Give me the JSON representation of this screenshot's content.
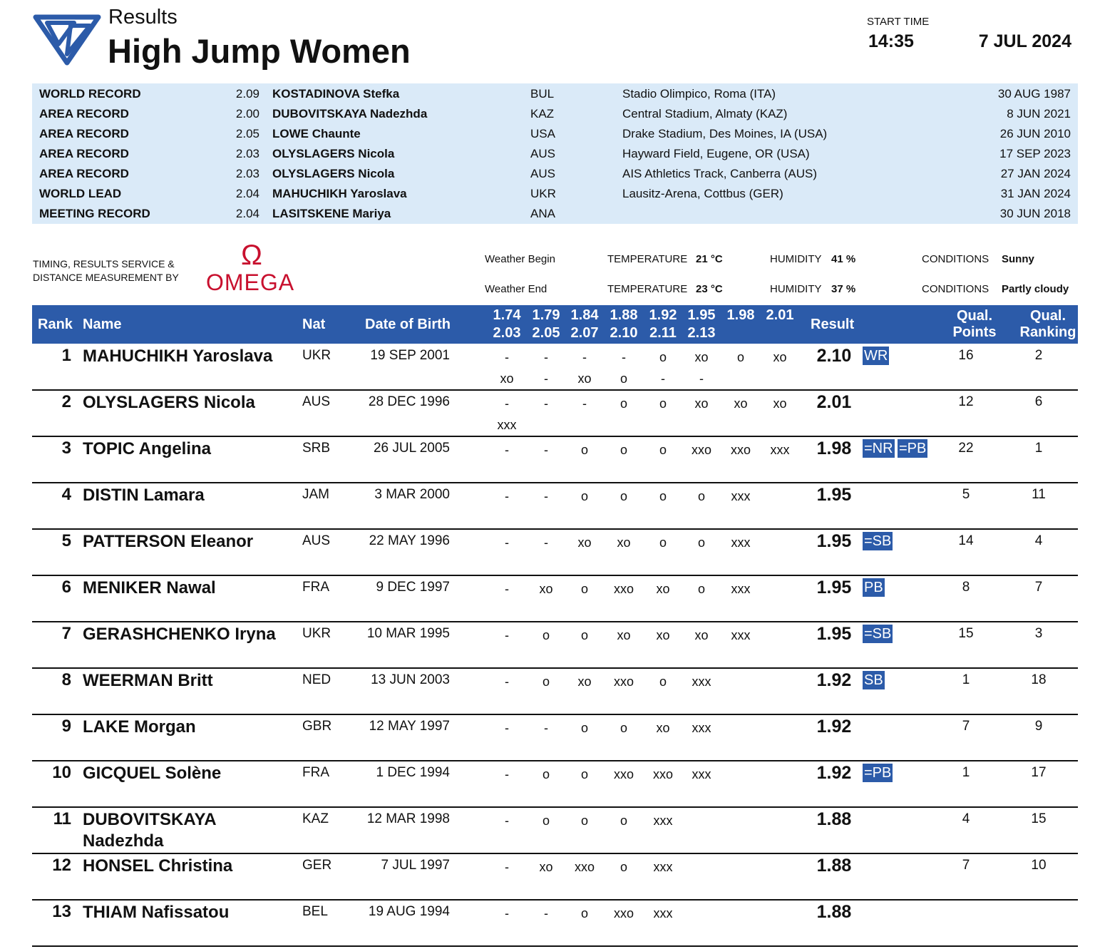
{
  "header": {
    "label": "Results",
    "title": "High Jump Women",
    "start_time_label": "START TIME",
    "start_time": "14:35",
    "date": "7 JUL 2024"
  },
  "records": [
    {
      "type": "WORLD RECORD",
      "mark": "2.09",
      "athlete": "KOSTADINOVA Stefka",
      "nat": "BUL",
      "venue": "Stadio Olimpico, Roma (ITA)",
      "date": "30 AUG 1987"
    },
    {
      "type": "AREA RECORD",
      "mark": "2.00",
      "athlete": "DUBOVITSKAYA Nadezhda",
      "nat": "KAZ",
      "venue": "Central Stadium, Almaty (KAZ)",
      "date": "8 JUN 2021"
    },
    {
      "type": "AREA RECORD",
      "mark": "2.05",
      "athlete": "LOWE Chaunte",
      "nat": "USA",
      "venue": "Drake Stadium, Des Moines, IA (USA)",
      "date": "26 JUN 2010"
    },
    {
      "type": "AREA RECORD",
      "mark": "2.03",
      "athlete": "OLYSLAGERS Nicola",
      "nat": "AUS",
      "venue": "Hayward Field, Eugene, OR (USA)",
      "date": "17 SEP 2023"
    },
    {
      "type": "AREA RECORD",
      "mark": "2.03",
      "athlete": "OLYSLAGERS Nicola",
      "nat": "AUS",
      "venue": "AIS Athletics Track, Canberra (AUS)",
      "date": "27 JAN 2024"
    },
    {
      "type": "WORLD LEAD",
      "mark": "2.04",
      "athlete": "MAHUCHIKH Yaroslava",
      "nat": "UKR",
      "venue": "Lausitz-Arena, Cottbus (GER)",
      "date": "31 JAN 2024"
    },
    {
      "type": "MEETING RECORD",
      "mark": "2.04",
      "athlete": "LASITSKENE Mariya",
      "nat": "ANA",
      "date": "30 JUN 2018"
    }
  ],
  "timing": {
    "text": "TIMING, RESULTS SERVICE & DISTANCE MEASUREMENT BY",
    "logo_symbol": "Ω",
    "logo": "OMEGA"
  },
  "weather": [
    {
      "label": "Weather Begin",
      "temp_label": "TEMPERATURE",
      "temp": "21 °C",
      "hum_label": "HUMIDITY",
      "hum": "41 %",
      "cond_label": "CONDITIONS",
      "cond": "Sunny"
    },
    {
      "label": "Weather End",
      "temp_label": "TEMPERATURE",
      "temp": "23 °C",
      "hum_label": "HUMIDITY",
      "hum": "37 %",
      "cond_label": "CONDITIONS",
      "cond": "Partly cloudy"
    }
  ],
  "table": {
    "columns": {
      "rank": "Rank",
      "name": "Name",
      "nat": "Nat",
      "dob": "Date of Birth",
      "result": "Result",
      "points": "Qual. Points",
      "ranking": "Qual. Ranking"
    },
    "heights": [
      [
        "1.74",
        "1.79",
        "1.84",
        "1.88",
        "1.92",
        "1.95",
        "1.98",
        "2.01"
      ],
      [
        "2.03",
        "2.05",
        "2.07",
        "2.10",
        "2.11",
        "2.13"
      ]
    ],
    "rows": [
      {
        "rank": 1,
        "name": "MAHUCHIKH Yaroslava",
        "nat": "UKR",
        "dob": "19 SEP 2001",
        "attempts": [
          [
            "-",
            "-",
            "-",
            "-",
            "o",
            "xo",
            "o",
            "xo"
          ],
          [
            "xo",
            "-",
            "xo",
            "o",
            "-",
            "-"
          ]
        ],
        "result": "2.10",
        "marks": [
          "WR"
        ],
        "points": 16,
        "ranking": 2
      },
      {
        "rank": 2,
        "name": "OLYSLAGERS Nicola",
        "nat": "AUS",
        "dob": "28 DEC 1996",
        "attempts": [
          [
            "-",
            "-",
            "-",
            "o",
            "o",
            "xo",
            "xo",
            "xo"
          ],
          [
            "xxx"
          ]
        ],
        "result": "2.01",
        "points": 12,
        "ranking": 6
      },
      {
        "rank": 3,
        "name": "TOPIC Angelina",
        "nat": "SRB",
        "dob": "26 JUL 2005",
        "attempts": [
          [
            "-",
            "-",
            "o",
            "o",
            "o",
            "xxo",
            "xxo",
            "xxx"
          ]
        ],
        "result": "1.98",
        "marks": [
          "=NR",
          "=PB"
        ],
        "points": 22,
        "ranking": 1
      },
      {
        "rank": 4,
        "name": "DISTIN Lamara",
        "nat": "JAM",
        "dob": "3 MAR 2000",
        "attempts": [
          [
            "-",
            "-",
            "o",
            "o",
            "o",
            "o",
            "xxx"
          ]
        ],
        "result": "1.95",
        "points": 5,
        "ranking": 11
      },
      {
        "rank": 5,
        "name": "PATTERSON Eleanor",
        "nat": "AUS",
        "dob": "22 MAY 1996",
        "attempts": [
          [
            "-",
            "-",
            "xo",
            "xo",
            "o",
            "o",
            "xxx"
          ]
        ],
        "result": "1.95",
        "marks": [
          "=SB"
        ],
        "points": 14,
        "ranking": 4
      },
      {
        "rank": 6,
        "name": "MENIKER Nawal",
        "nat": "FRA",
        "dob": "9 DEC 1997",
        "attempts": [
          [
            "-",
            "xo",
            "o",
            "xxo",
            "xo",
            "o",
            "xxx"
          ]
        ],
        "result": "1.95",
        "marks": [
          "PB"
        ],
        "points": 8,
        "ranking": 7
      },
      {
        "rank": 7,
        "name": "GERASHCHENKO Iryna",
        "nat": "UKR",
        "dob": "10 MAR 1995",
        "attempts": [
          [
            "-",
            "o",
            "o",
            "xo",
            "xo",
            "xo",
            "xxx"
          ]
        ],
        "result": "1.95",
        "marks": [
          "=SB"
        ],
        "points": 15,
        "ranking": 3
      },
      {
        "rank": 8,
        "name": "WEERMAN Britt",
        "nat": "NED",
        "dob": "13 JUN 2003",
        "attempts": [
          [
            "-",
            "o",
            "xo",
            "xxo",
            "o",
            "xxx"
          ]
        ],
        "result": "1.92",
        "marks": [
          "SB"
        ],
        "points": 1,
        "ranking": 18
      },
      {
        "rank": 9,
        "name": "LAKE Morgan",
        "nat": "GBR",
        "dob": "12 MAY 1997",
        "attempts": [
          [
            "-",
            "-",
            "o",
            "o",
            "xo",
            "xxx"
          ]
        ],
        "result": "1.92",
        "points": 7,
        "ranking": 9
      },
      {
        "rank": 10,
        "name": "GICQUEL Solène",
        "nat": "FRA",
        "dob": "1 DEC 1994",
        "attempts": [
          [
            "-",
            "o",
            "o",
            "xxo",
            "xxo",
            "xxx"
          ]
        ],
        "result": "1.92",
        "marks": [
          "=PB"
        ],
        "points": 1,
        "ranking": 17
      },
      {
        "rank": 11,
        "name": "DUBOVITSKAYA Nadezhda",
        "nat": "KAZ",
        "dob": "12 MAR 1998",
        "attempts": [
          [
            "-",
            "o",
            "o",
            "o",
            "xxx"
          ]
        ],
        "result": "1.88",
        "points": 4,
        "ranking": 15
      },
      {
        "rank": 12,
        "name": "HONSEL Christina",
        "nat": "GER",
        "dob": "7 JUL 1997",
        "attempts": [
          [
            "-",
            "xo",
            "xxo",
            "o",
            "xxx"
          ]
        ],
        "result": "1.88",
        "points": 7,
        "ranking": 10
      },
      {
        "rank": 13,
        "name": "THIAM Nafissatou",
        "nat": "BEL",
        "dob": "19 AUG 1994",
        "attempts": [
          [
            "-",
            "-",
            "o",
            "xxo",
            "xxx"
          ]
        ],
        "result": "1.88"
      }
    ]
  }
}
